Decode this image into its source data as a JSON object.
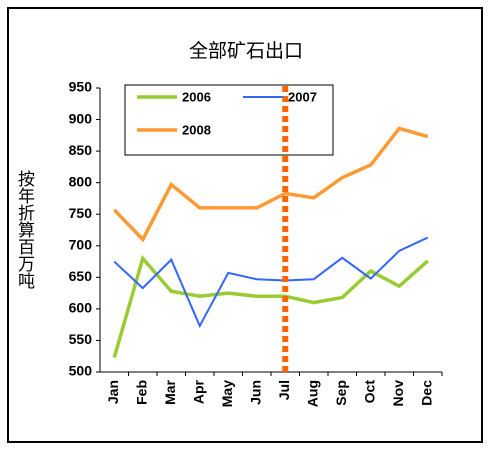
{
  "chart_data": {
    "type": "line",
    "title": "全部矿石出口",
    "y_label": "按年折算百万吨",
    "categories": [
      "Jan",
      "Feb",
      "Mar",
      "Apr",
      "May",
      "Jun",
      "Jul",
      "Aug",
      "Sep",
      "Oct",
      "Nov",
      "Dec"
    ],
    "series": [
      {
        "name": "2006",
        "color": "#99cc33",
        "values": [
          523,
          680,
          628,
          620,
          625,
          620,
          620,
          610,
          618,
          660,
          636,
          676
        ]
      },
      {
        "name": "2007",
        "color": "#3366ff",
        "values": [
          675,
          633,
          678,
          573,
          657,
          647,
          645,
          647,
          681,
          648,
          692,
          713
        ]
      },
      {
        "name": "2008",
        "color": "#ff9933",
        "values": [
          757,
          710,
          797,
          760,
          760,
          760,
          783,
          776,
          808,
          828,
          886,
          873
        ]
      }
    ],
    "ylim": [
      500,
      950
    ],
    "yticks": [
      500,
      550,
      600,
      650,
      700,
      750,
      800,
      850,
      900,
      950
    ],
    "grid": false,
    "vline": {
      "category": 6,
      "color": "#ff6600"
    }
  }
}
